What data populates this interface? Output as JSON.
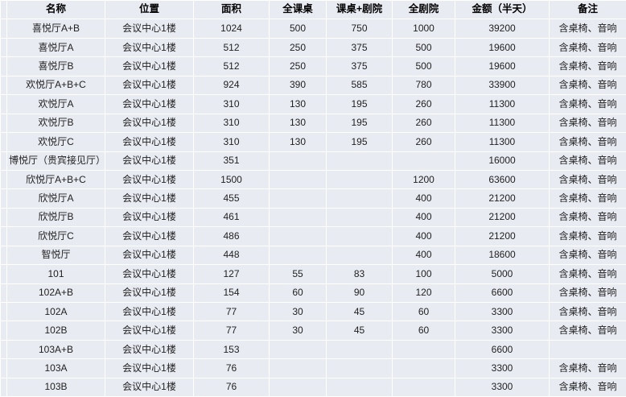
{
  "table": {
    "columns": [
      "名称",
      "位置",
      "面积",
      "全课桌",
      "课桌+剧院",
      "全剧院",
      "金额（半天）",
      "备注"
    ],
    "rows": [
      [
        "喜悦厅A+B",
        "会议中心1楼",
        "1024",
        "500",
        "750",
        "1000",
        "39200",
        "含桌椅、音响"
      ],
      [
        "喜悦厅A",
        "会议中心1楼",
        "512",
        "250",
        "375",
        "500",
        "19600",
        "含桌椅、音响"
      ],
      [
        "喜悦厅B",
        "会议中心1楼",
        "512",
        "250",
        "375",
        "500",
        "19600",
        "含桌椅、音响"
      ],
      [
        "欢悦厅A+B+C",
        "会议中心1楼",
        "924",
        "390",
        "585",
        "780",
        "33900",
        "含桌椅、音响"
      ],
      [
        "欢悦厅A",
        "会议中心1楼",
        "310",
        "130",
        "195",
        "260",
        "11300",
        "含桌椅、音响"
      ],
      [
        "欢悦厅B",
        "会议中心1楼",
        "310",
        "130",
        "195",
        "260",
        "11300",
        "含桌椅、音响"
      ],
      [
        "欢悦厅C",
        "会议中心1楼",
        "310",
        "130",
        "195",
        "260",
        "11300",
        "含桌椅、音响"
      ],
      [
        "博悦厅（贵宾接见厅）",
        "会议中心1楼",
        "351",
        "",
        "",
        "",
        "16000",
        "含桌椅、音响"
      ],
      [
        "欣悦厅A+B+C",
        "会议中心1楼",
        "1500",
        "",
        "",
        "1200",
        "63600",
        "含桌椅、音响"
      ],
      [
        "欣悦厅A",
        "会议中心1楼",
        "455",
        "",
        "",
        "400",
        "21200",
        "含桌椅、音响"
      ],
      [
        "欣悦厅B",
        "会议中心1楼",
        "461",
        "",
        "",
        "400",
        "21200",
        "含桌椅、音响"
      ],
      [
        "欣悦厅C",
        "会议中心1楼",
        "486",
        "",
        "",
        "400",
        "21200",
        "含桌椅、音响"
      ],
      [
        "智悦厅",
        "会议中心1楼",
        "448",
        "",
        "",
        "400",
        "18600",
        "含桌椅、音响"
      ],
      [
        "101",
        "会议中心1楼",
        "127",
        "55",
        "83",
        "100",
        "5000",
        "含桌椅、音响"
      ],
      [
        "102A+B",
        "会议中心1楼",
        "154",
        "60",
        "90",
        "120",
        "6600",
        "含桌椅、音响"
      ],
      [
        "102A",
        "会议中心1楼",
        "77",
        "30",
        "45",
        "60",
        "3300",
        "含桌椅、音响"
      ],
      [
        "102B",
        "会议中心1楼",
        "77",
        "30",
        "45",
        "60",
        "3300",
        "含桌椅、音响"
      ],
      [
        "103A+B",
        "会议中心1楼",
        "153",
        "",
        "",
        "",
        "6600",
        ""
      ],
      [
        "103A",
        "会议中心1楼",
        "76",
        "",
        "",
        "",
        "3300",
        "含桌椅、音响"
      ],
      [
        "103B",
        "会议中心1楼",
        "76",
        "",
        "",
        "",
        "3300",
        "含桌椅、音响"
      ]
    ]
  },
  "colors": {
    "cell_background": "#e9ebf3",
    "grid_line": "#ffffff",
    "body_text": "#1f1f1f",
    "header_text": "#000000"
  }
}
